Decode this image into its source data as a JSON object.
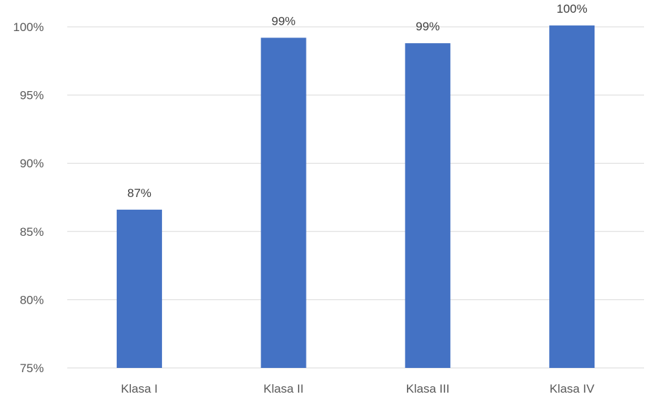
{
  "chart_data": {
    "type": "bar",
    "categories": [
      "Klasa I",
      "Klasa II",
      "Klasa III",
      "Klasa IV"
    ],
    "values": [
      86.6,
      99.2,
      98.8,
      100.1
    ],
    "data_labels": [
      "87%",
      "99%",
      "99%",
      "100%"
    ],
    "ylim": [
      75,
      100
    ],
    "y_ticks": [
      75,
      80,
      85,
      90,
      95,
      100
    ],
    "y_tick_labels": [
      "75%",
      "80%",
      "85%",
      "90%",
      "95%",
      "100%"
    ],
    "title": "",
    "xlabel": "",
    "ylabel": "",
    "grid": true,
    "legend": "none",
    "bar_color": "#4472c4",
    "grid_color": "#d9d9d9"
  }
}
